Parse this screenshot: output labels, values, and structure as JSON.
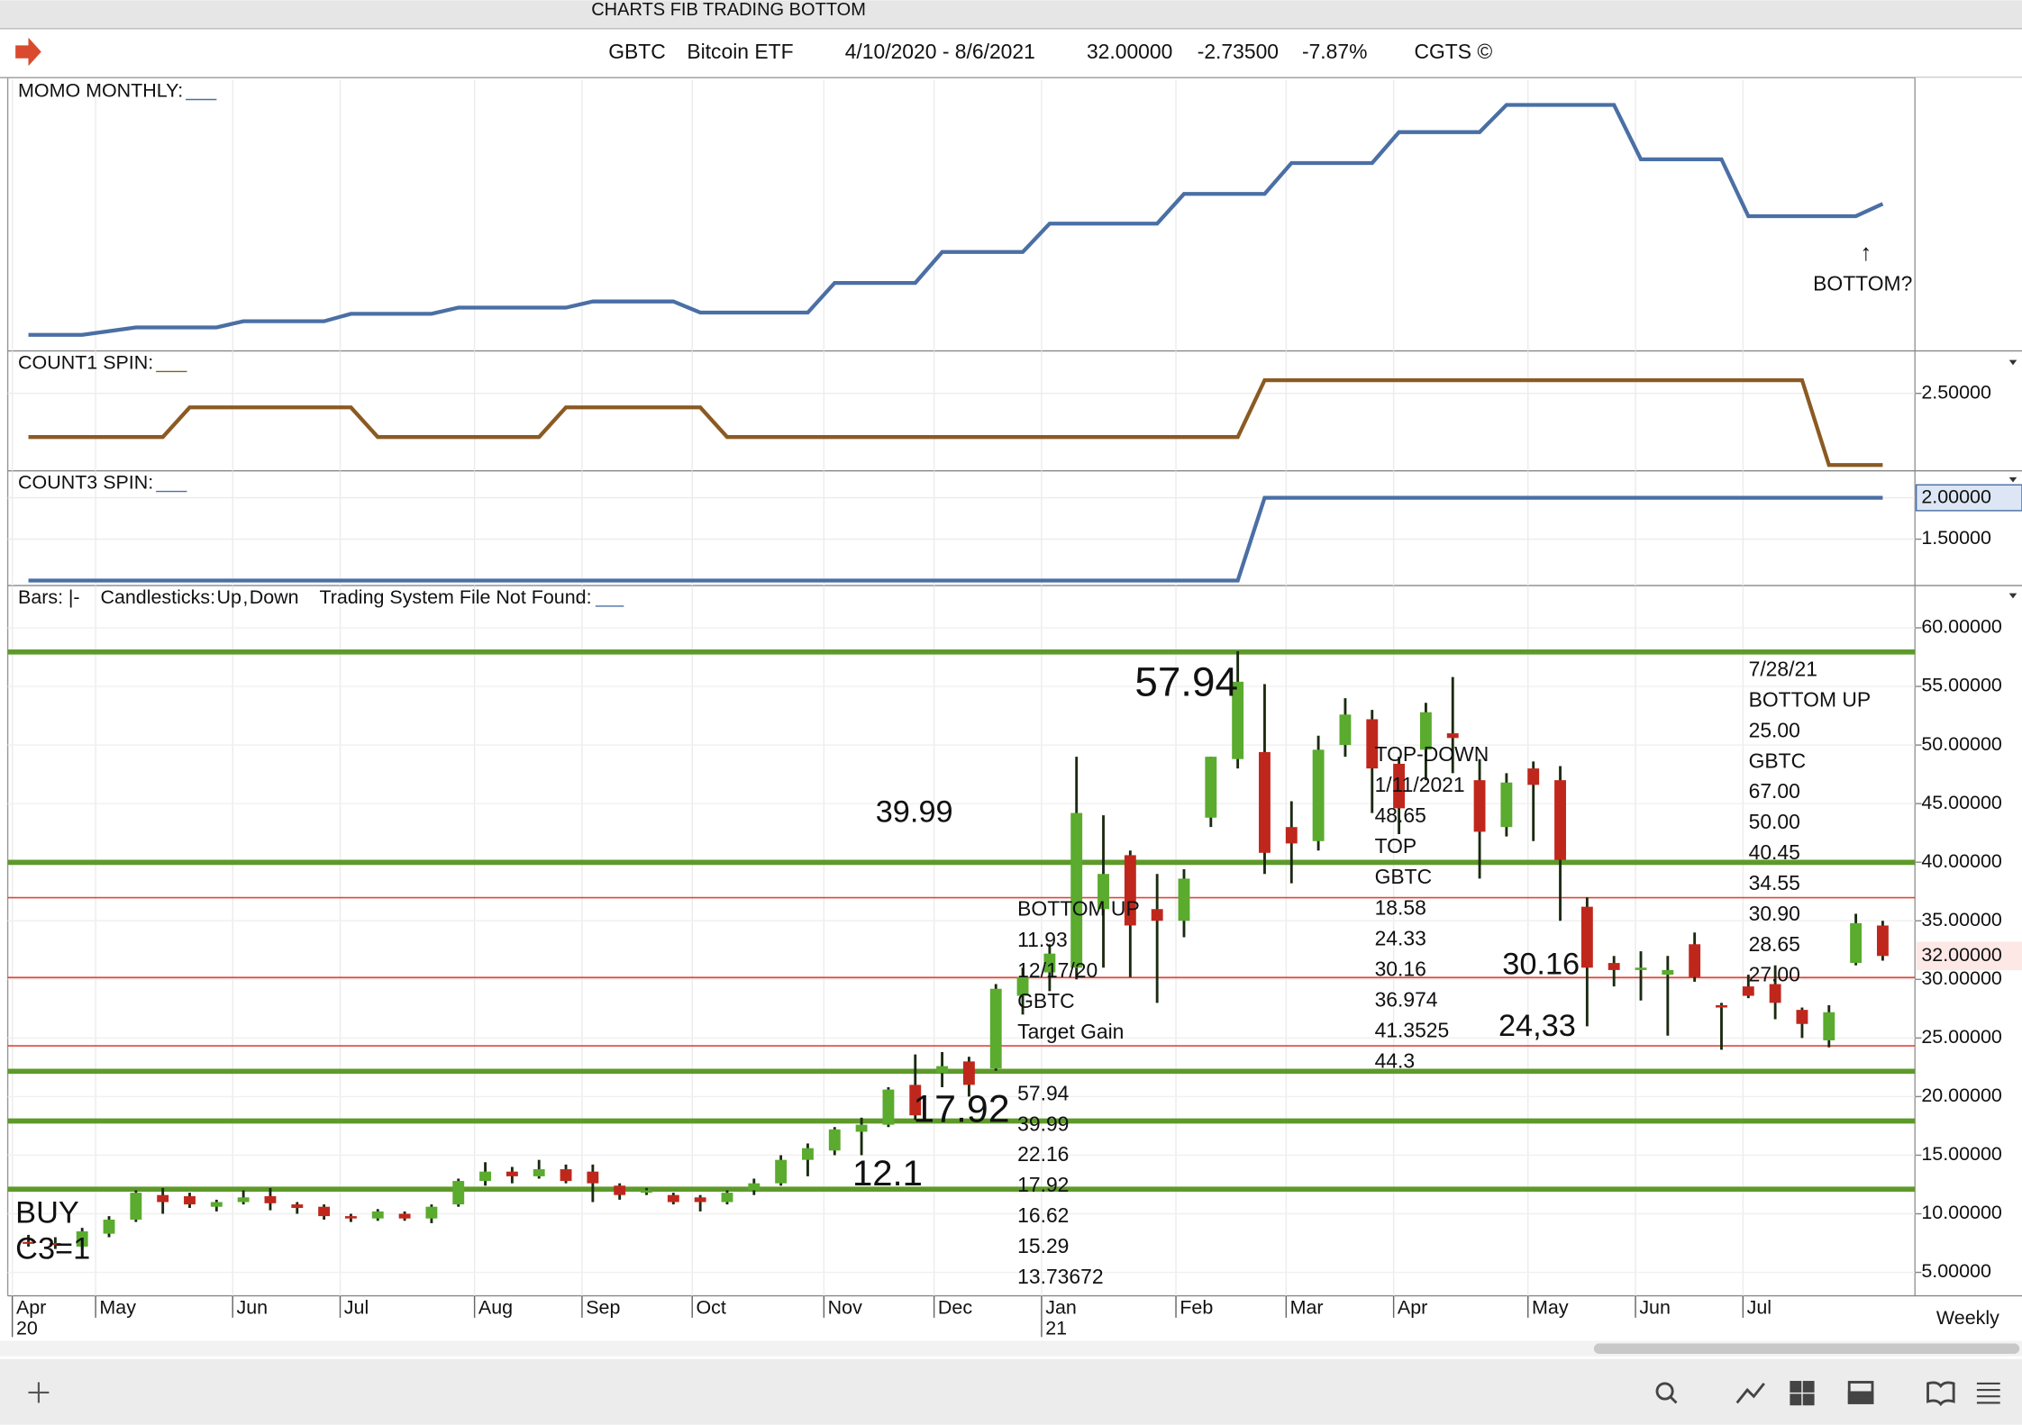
{
  "window_title": "CHARTS FIB TRADING BOTTOM",
  "info": [
    "GBTC",
    "Bitcoin ETF",
    "4/10/2020 - 8/6/2021",
    "32.00000",
    "-2.73500",
    "-7.87%",
    "CGTS ©"
  ],
  "legend": {
    "bars": "Bars:",
    "bars_sample": "|-",
    "candles": "Candlesticks:",
    "up": "Up",
    "sep": ",",
    "down": "Down",
    "system": "Trading System File Not Found:"
  },
  "period": "Weekly",
  "chart_data": [
    {
      "type": "line",
      "label": "MOMO MONTHLY:",
      "color": "#4a6fa5",
      "xlim": [
        -0.77,
        70.2
      ],
      "ylim": [
        -0.9,
        21
      ],
      "x": [
        0,
        2,
        4,
        7,
        8,
        11,
        12,
        15,
        16,
        20,
        21,
        24,
        25,
        29,
        30,
        33,
        34,
        37,
        38,
        42,
        43,
        46,
        47,
        50,
        51,
        54,
        55,
        59,
        60,
        63,
        64,
        68,
        69
      ],
      "values": [
        0.4,
        0.4,
        1.0,
        1.0,
        1.5,
        1.5,
        2.1,
        2.1,
        2.6,
        2.6,
        3.1,
        3.1,
        2.2,
        2.2,
        4.6,
        4.6,
        7.1,
        7.1,
        9.4,
        9.4,
        11.8,
        11.8,
        14.3,
        14.3,
        16.8,
        16.8,
        19.0,
        19.0,
        14.6,
        14.6,
        10.0,
        10.0,
        11.0
      ],
      "annotations": [
        "↑",
        "BOTTOM?"
      ]
    },
    {
      "type": "line",
      "label": "COUNT1 SPIN:",
      "color": "#8b5a22",
      "xlim": [
        -0.77,
        70.2
      ],
      "ylim": [
        1.56,
        3.0
      ],
      "yticks": [
        {
          "value": 2.5,
          "label": "2.50000"
        }
      ],
      "x": [
        0,
        5,
        6,
        12,
        13,
        19,
        20,
        25,
        26,
        45,
        46,
        66,
        67,
        69
      ],
      "values": [
        1.97,
        1.97,
        2.33,
        2.33,
        1.97,
        1.97,
        2.33,
        2.33,
        1.97,
        1.97,
        2.66,
        2.66,
        1.63,
        1.63
      ]
    },
    {
      "type": "line",
      "label": "COUNT3 SPIN:",
      "color": "#4a6fa5",
      "xlim": [
        -0.77,
        70.2
      ],
      "ylim": [
        0.94,
        2.31
      ],
      "yticks": [
        {
          "value": 2,
          "label": "2.00000"
        },
        {
          "value": 1.5,
          "label": "1.50000"
        }
      ],
      "x": [
        0,
        45,
        46,
        69
      ],
      "values": [
        1.0,
        1.0,
        2.0,
        2.0
      ]
    },
    {
      "type": "candlestick",
      "up_color": "#5aab2e",
      "down_color": "#c0271c",
      "xlim": [
        -0.77,
        70.2
      ],
      "ylim": [
        3.0,
        63.5
      ],
      "yticks": [
        {
          "value": 60,
          "label": "60.00000"
        },
        {
          "value": 55,
          "label": "55.00000"
        },
        {
          "value": 50,
          "label": "50.00000"
        },
        {
          "value": 45,
          "label": "45.00000"
        },
        {
          "value": 40,
          "label": "40.00000"
        },
        {
          "value": 35,
          "label": "35.00000"
        },
        {
          "value": 30,
          "label": "30.00000"
        },
        {
          "value": 25,
          "label": "25.00000"
        },
        {
          "value": 20,
          "label": "20.00000"
        },
        {
          "value": 15,
          "label": "15.00000"
        },
        {
          "value": 10,
          "label": "10.00000"
        },
        {
          "value": 5,
          "label": "5.00000"
        }
      ],
      "xticks": [
        {
          "value": -0.6,
          "label": "Apr"
        },
        {
          "value": 2.5,
          "label": "May"
        },
        {
          "value": 7.6,
          "label": "Jun"
        },
        {
          "value": 11.6,
          "label": "Jul"
        },
        {
          "value": 16.6,
          "label": "Aug"
        },
        {
          "value": 20.6,
          "label": "Sep"
        },
        {
          "value": 24.7,
          "label": "Oct"
        },
        {
          "value": 29.6,
          "label": "Nov"
        },
        {
          "value": 33.7,
          "label": "Dec"
        },
        {
          "value": 37.7,
          "label": "Jan"
        },
        {
          "value": 42.7,
          "label": "Feb"
        },
        {
          "value": 46.8,
          "label": "Mar"
        },
        {
          "value": 50.8,
          "label": "Apr"
        },
        {
          "value": 55.8,
          "label": "May"
        },
        {
          "value": 59.8,
          "label": "Jun"
        },
        {
          "value": 63.8,
          "label": "Jul"
        }
      ],
      "year_ticks": [
        {
          "value": -0.6,
          "label": "20"
        },
        {
          "value": 37.7,
          "label": "21"
        }
      ],
      "last_price": {
        "value": 32,
        "label": "32.00000"
      },
      "levels": [
        57.94,
        39.99,
        22.16,
        17.92,
        12.1
      ],
      "level_color": "#5e9a2a",
      "red_levels": [
        36.974,
        30.16,
        24.33
      ],
      "red_level_color": "#e0463a",
      "open": [
        7.6,
        7.5,
        7.2,
        8.3,
        9.5,
        11.6,
        11.5,
        10.6,
        11.0,
        11.5,
        10.8,
        10.6,
        9.8,
        9.6,
        10.0,
        9.6,
        10.8,
        12.8,
        13.6,
        13.2,
        13.8,
        13.6,
        12.4,
        11.8,
        11.6,
        11.4,
        11.0,
        12.0,
        12.6,
        14.6,
        15.4,
        17.0,
        17.6,
        21.0,
        22.0,
        23.0,
        22.4,
        28.6,
        30.6,
        31.0,
        36.0,
        40.6,
        36.0,
        35.0,
        43.8,
        48.8,
        49.4,
        43.0,
        41.8,
        50.0,
        52.2,
        48.4,
        49.6,
        51.0,
        47.0,
        43.0,
        48.0,
        47.0,
        36.2,
        31.4,
        30.8,
        30.4,
        33.0,
        27.8,
        29.4,
        29.6,
        27.4,
        24.8,
        31.4,
        34.6
      ],
      "high": [
        8.2,
        8.0,
        8.8,
        9.8,
        12.0,
        12.2,
        11.8,
        11.2,
        12.0,
        12.2,
        11.0,
        10.8,
        10.0,
        10.4,
        10.2,
        10.8,
        13.0,
        14.4,
        14.0,
        14.6,
        14.2,
        14.2,
        12.6,
        12.2,
        11.8,
        11.6,
        12.0,
        13.0,
        15.0,
        16.0,
        17.4,
        18.2,
        20.8,
        23.6,
        23.8,
        23.4,
        29.6,
        31.0,
        33.0,
        49.0,
        44.0,
        41.0,
        39.0,
        39.4,
        49.0,
        58.0,
        55.2,
        45.2,
        50.8,
        54.0,
        53.0,
        49.0,
        53.6,
        55.8,
        48.8,
        47.6,
        48.6,
        48.2,
        37.0,
        32.0,
        32.4,
        32.0,
        34.0,
        28.0,
        30.4,
        31.2,
        27.6,
        27.8,
        35.6,
        35.0
      ],
      "low": [
        7.2,
        7.0,
        7.0,
        8.0,
        9.3,
        10.0,
        10.5,
        10.2,
        10.8,
        10.3,
        10.0,
        9.5,
        9.3,
        9.4,
        9.4,
        9.2,
        10.6,
        12.4,
        12.6,
        13.0,
        12.6,
        11.0,
        11.2,
        11.6,
        10.8,
        10.2,
        10.8,
        11.6,
        12.4,
        13.2,
        15.0,
        15.0,
        17.4,
        18.0,
        20.8,
        20.0,
        22.2,
        27.0,
        29.0,
        30.0,
        31.0,
        30.2,
        28.0,
        33.6,
        43.0,
        48.0,
        39.0,
        38.2,
        41.0,
        49.0,
        44.2,
        42.4,
        47.0,
        47.6,
        38.6,
        42.2,
        41.8,
        35.0,
        26.0,
        29.4,
        28.2,
        25.2,
        29.8,
        24.0,
        28.4,
        26.6,
        25.0,
        24.2,
        31.2,
        31.6
      ],
      "close": [
        7.5,
        7.4,
        8.5,
        9.5,
        11.8,
        11.0,
        10.8,
        11.0,
        11.4,
        10.9,
        10.5,
        9.8,
        9.6,
        10.2,
        9.6,
        10.6,
        12.8,
        13.6,
        13.2,
        13.8,
        12.8,
        12.6,
        11.6,
        12.0,
        11.0,
        11.0,
        11.8,
        12.6,
        14.6,
        15.6,
        17.2,
        17.6,
        20.6,
        18.4,
        22.6,
        21.0,
        29.2,
        30.2,
        32.2,
        44.2,
        39.0,
        34.6,
        35.0,
        38.6,
        49.0,
        55.4,
        40.8,
        41.6,
        49.6,
        52.6,
        48.0,
        44.6,
        52.8,
        50.6,
        42.6,
        46.8,
        46.6,
        40.2,
        31.0,
        30.8,
        31.0,
        30.8,
        30.2,
        27.6,
        28.6,
        28.0,
        26.2,
        27.2,
        34.8,
        32.0
      ],
      "annotations": [
        {
          "color": "#5b9a2b",
          "lines": [
            "BOTTOM UP",
            "11.93",
            "12/17/20",
            "GBTC",
            "Target Gain"
          ]
        },
        {
          "color": "#5b9a2b",
          "lines": [
            "57.94",
            "39.99",
            "22.16",
            "17.92",
            "16.62",
            "15.29",
            "13.73672"
          ]
        },
        {
          "color": "#e0391f",
          "lines": [
            "TOP-DOWN",
            "1/11/2021",
            "48.65",
            "TOP",
            "GBTC",
            "18.58",
            "24.33",
            "30.16",
            "36.974",
            "41.3525",
            "44.3"
          ]
        },
        {
          "color": "#5b9a2b",
          "lines": [
            "7/28/21",
            "BOTTOM UP",
            "25.00",
            "GBTC",
            "67.00",
            "50.00",
            "40.45",
            "34.55",
            "30.90",
            "28.65",
            "27.00"
          ]
        }
      ],
      "big_labels": [
        {
          "text": "57.94",
          "color": "#5b9a2b"
        },
        {
          "text": "39.99",
          "color": "#5b9a2b"
        },
        {
          "text": "30.16",
          "color": "#e0391f"
        },
        {
          "text": "24,33",
          "color": "#e0391f"
        },
        {
          "text": "17.92",
          "color": "#5b9a2b"
        },
        {
          "text": "12.1",
          "color": "#5b9a2b"
        },
        {
          "text": "BUY",
          "color": "#3a9a9a"
        },
        {
          "text": "C3=1",
          "color": "#3a9a9a"
        }
      ]
    }
  ]
}
